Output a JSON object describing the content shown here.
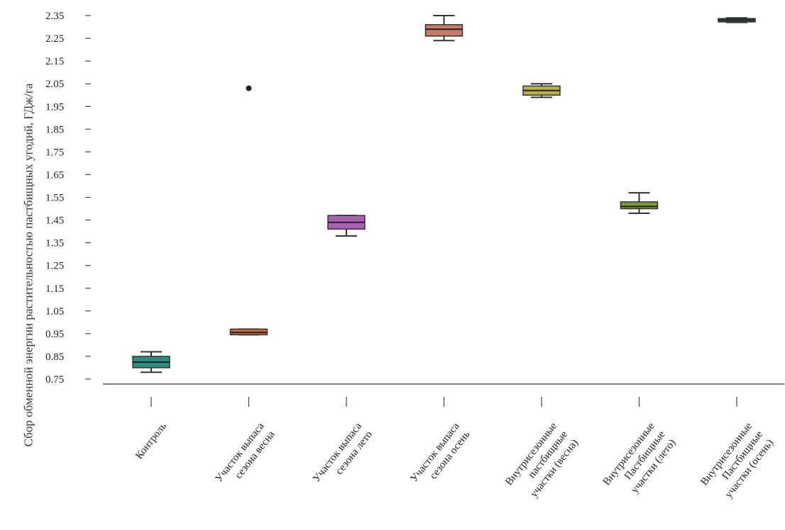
{
  "chart_data": {
    "type": "box",
    "ylabel": "Сбор обменной энергии растительностью пастбищных угодий, ГДж/га",
    "xlabel": "",
    "ylim": [
      0.75,
      2.35
    ],
    "yticks": [
      "0.75",
      "0.85",
      "0.95",
      "1.05",
      "1.15",
      "1.25",
      "1.35",
      "1.45",
      "1.55",
      "1.65",
      "1.75",
      "1.85",
      "1.95",
      "2.05",
      "2.15",
      "2.25",
      "2.35"
    ],
    "grid": false,
    "categories": [
      {
        "lines": [
          "Контроль"
        ]
      },
      {
        "lines": [
          "Участок выпаса",
          "сезона весна"
        ]
      },
      {
        "lines": [
          "Участок выпаса",
          "сезона лето"
        ]
      },
      {
        "lines": [
          "Участок выпаса",
          "сезона осень"
        ]
      },
      {
        "lines": [
          "Внутрисезонные",
          "пастбищные",
          "участки (весна)"
        ]
      },
      {
        "lines": [
          "Внутрисезонные",
          "Пастбищные",
          "участки (лето)"
        ]
      },
      {
        "lines": [
          "Внутрисезонные",
          "Пастбищные",
          "участки (осень)"
        ]
      }
    ],
    "boxes": [
      {
        "min": 0.78,
        "q1": 0.8,
        "median": 0.825,
        "q3": 0.85,
        "max": 0.87,
        "outliers": [],
        "color": "#2a8c7e"
      },
      {
        "min": 0.945,
        "q1": 0.945,
        "median": 0.955,
        "q3": 0.97,
        "max": 0.97,
        "outliers": [
          2.03
        ],
        "color": "#c8663e"
      },
      {
        "min": 1.38,
        "q1": 1.41,
        "median": 1.44,
        "q3": 1.47,
        "max": 1.47,
        "outliers": [],
        "color": "#a95fb3"
      },
      {
        "min": 2.24,
        "q1": 2.26,
        "median": 2.29,
        "q3": 2.31,
        "max": 2.35,
        "outliers": [],
        "color": "#c87c6a"
      },
      {
        "min": 1.99,
        "q1": 2.0,
        "median": 2.02,
        "q3": 2.04,
        "max": 2.05,
        "outliers": [],
        "color": "#b9b04a"
      },
      {
        "min": 1.48,
        "q1": 1.5,
        "median": 1.51,
        "q3": 1.53,
        "max": 1.57,
        "outliers": [],
        "color": "#7a9a3a"
      },
      {
        "min": 2.32,
        "q1": 2.322,
        "median": 2.33,
        "q3": 2.337,
        "max": 2.34,
        "outliers": [],
        "color": "#3e5e5a"
      }
    ]
  }
}
